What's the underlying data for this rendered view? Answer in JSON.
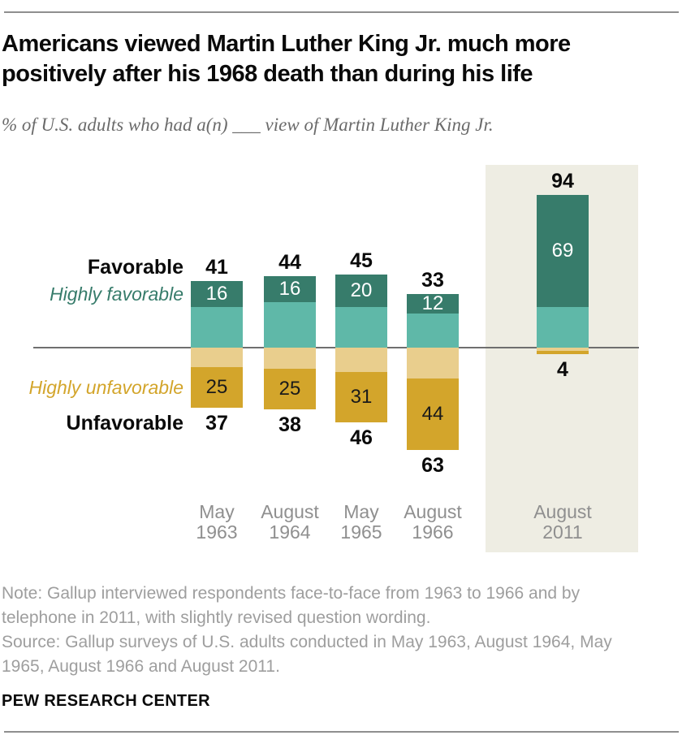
{
  "page": {
    "title_lines": [
      "Americans viewed Martin Luther King Jr. much more",
      "positively after his 1968 death than during his life"
    ],
    "subtitle": "% of U.S. adults who had a(n) ___ view of Martin Luther King Jr.",
    "note_lines": [
      "Note: Gallup interviewed respondents face-to-face from 1963 to 1966 and by",
      "telephone in 2011, with slightly revised question wording.",
      "Source: Gallup surveys of U.S. adults conducted in May 1963, August 1964, May",
      "1965, August 1966 and August 2011."
    ],
    "brand": "PEW RESEARCH CENTER"
  },
  "chart_data": {
    "type": "bar",
    "subtype": "diverging-stacked",
    "title": "Americans viewed Martin Luther King Jr. much more positively after his 1968 death than during his life",
    "subtitle": "% of U.S. adults who had a(n) ___ view of Martin Luther King Jr.",
    "unit": "%",
    "categories": [
      [
        "May",
        "1963"
      ],
      [
        "August",
        "1964"
      ],
      [
        "May",
        "1965"
      ],
      [
        "August",
        "1966"
      ],
      [
        "August",
        "2011"
      ]
    ],
    "series_labels": {
      "favorable": "Favorable",
      "highly_favorable": "Highly favorable",
      "highly_unfavorable": "Highly unfavorable",
      "unfavorable": "Unfavorable"
    },
    "bars": [
      {
        "category": "May 1963",
        "favorable_total": 41,
        "highly_favorable": 16,
        "unfavorable_total": 37,
        "highly_unfavorable": 25,
        "show_hu_label": true,
        "highlighted": false
      },
      {
        "category": "August 1964",
        "favorable_total": 44,
        "highly_favorable": 16,
        "unfavorable_total": 38,
        "highly_unfavorable": 25,
        "show_hu_label": true,
        "highlighted": false
      },
      {
        "category": "May 1965",
        "favorable_total": 45,
        "highly_favorable": 20,
        "unfavorable_total": 46,
        "highly_unfavorable": 31,
        "show_hu_label": true,
        "highlighted": false
      },
      {
        "category": "August 1966",
        "favorable_total": 33,
        "highly_favorable": 12,
        "unfavorable_total": 63,
        "highly_unfavorable": 44,
        "show_hu_label": true,
        "highlighted": false
      },
      {
        "category": "August 2011",
        "favorable_total": 94,
        "highly_favorable": 69,
        "unfavorable_total": 4,
        "highly_unfavorable": 2,
        "show_hu_label": false,
        "highlighted": true
      }
    ],
    "colors": {
      "highly_favorable": "#377C6B",
      "favorable": "#5FB8A8",
      "unfavorable": "#E9CE8D",
      "highly_unfavorable": "#D3A52B",
      "highlight_panel": "#EEEDE3",
      "zero_line": "#6F6F6F",
      "rule": "#8F8F8F",
      "inside_label_light": "#FFFFFF",
      "inside_label_dark": "#1A1A1A"
    },
    "layout_hints": {
      "baseline": "zero line between favorable (up) and unfavorable (down)",
      "grid": "off",
      "legend": "left edge series labels"
    }
  }
}
